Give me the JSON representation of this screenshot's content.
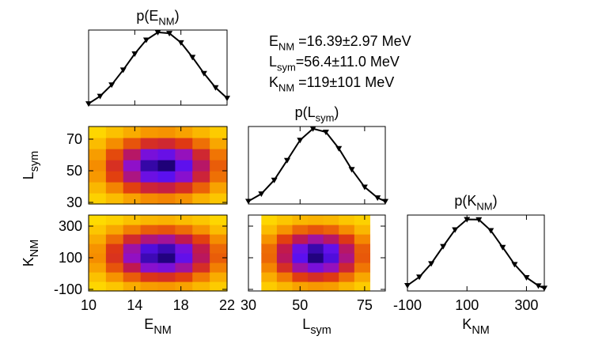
{
  "chart_data": [
    {
      "type": "line",
      "title": {
        "main": "p(E",
        "sub": "NM",
        "tail": ")"
      },
      "x": [
        10,
        11,
        12,
        13,
        14,
        15,
        16,
        17,
        18,
        19,
        20,
        21,
        22
      ],
      "values": [
        0.099,
        0.193,
        0.335,
        0.521,
        0.723,
        0.896,
        0.991,
        0.979,
        0.863,
        0.68,
        0.478,
        0.3,
        0.168
      ],
      "color": "#000000",
      "xlim": [
        10,
        22
      ],
      "xticks": [
        10,
        14,
        18,
        22
      ],
      "show_xtick_labels": false,
      "ylim": [
        0.08,
        1.02
      ],
      "annotations": [
        {
          "main": "E",
          "sub": "NM",
          "tail": " =16.39±2.97 MeV"
        },
        {
          "main": "L",
          "sub": "sym",
          "tail": "=56.4±11.0 MeV"
        },
        {
          "main": "K",
          "sub": "NM",
          "tail": " =119±101 MeV"
        }
      ]
    },
    {
      "type": "heatmap",
      "ylabel": {
        "main": "L",
        "sub": "sym"
      },
      "x": [
        10.75,
        12.25,
        13.75,
        15.25,
        16.75,
        18.25,
        19.75,
        21.25
      ],
      "y": [
        32.5,
        39.5,
        46.5,
        53.5,
        60.5,
        67.5,
        74.5
      ],
      "z": [
        [
          0.03,
          0.07,
          0.12,
          0.16,
          0.18,
          0.15,
          0.09,
          0.05
        ],
        [
          0.08,
          0.18,
          0.32,
          0.44,
          0.47,
          0.38,
          0.25,
          0.12
        ],
        [
          0.14,
          0.32,
          0.57,
          0.78,
          0.83,
          0.69,
          0.44,
          0.22
        ],
        [
          0.16,
          0.38,
          0.67,
          0.93,
          0.99,
          0.82,
          0.53,
          0.26
        ],
        [
          0.13,
          0.3,
          0.53,
          0.74,
          0.79,
          0.65,
          0.42,
          0.21
        ],
        [
          0.07,
          0.16,
          0.28,
          0.39,
          0.42,
          0.34,
          0.22,
          0.11
        ],
        [
          0.02,
          0.06,
          0.1,
          0.14,
          0.15,
          0.12,
          0.08,
          0.04
        ]
      ],
      "xlim": [
        10,
        22
      ],
      "xticks": [
        10,
        14,
        18,
        22
      ],
      "show_xtick_labels": false,
      "ylim": [
        29,
        78
      ],
      "yticks": [
        30,
        50,
        70
      ],
      "show_ytick_labels": true,
      "zlim": [
        0,
        1
      ],
      "colormap": [
        "#ffe000",
        "#f58a00",
        "#e03a10",
        "#c01850",
        "#9010c8",
        "#5a10f0",
        "#1a0070"
      ]
    },
    {
      "type": "heatmap",
      "xlabel": {
        "main": "E",
        "sub": "NM"
      },
      "ylabel": {
        "main": "K",
        "sub": "NM"
      },
      "x": [
        10.75,
        12.25,
        13.75,
        15.25,
        16.75,
        18.25,
        19.75,
        21.25
      ],
      "y": [
        -80,
        -20,
        40,
        100,
        160,
        220,
        280,
        340
      ],
      "z": [
        [
          0.02,
          0.05,
          0.1,
          0.13,
          0.14,
          0.12,
          0.08,
          0.04
        ],
        [
          0.06,
          0.15,
          0.26,
          0.36,
          0.38,
          0.32,
          0.2,
          0.1
        ],
        [
          0.12,
          0.28,
          0.5,
          0.69,
          0.73,
          0.61,
          0.39,
          0.19
        ],
        [
          0.16,
          0.37,
          0.66,
          0.91,
          0.98,
          0.81,
          0.52,
          0.26
        ],
        [
          0.15,
          0.35,
          0.62,
          0.86,
          0.91,
          0.75,
          0.49,
          0.24
        ],
        [
          0.1,
          0.23,
          0.41,
          0.56,
          0.6,
          0.5,
          0.32,
          0.16
        ],
        [
          0.05,
          0.11,
          0.19,
          0.26,
          0.28,
          0.23,
          0.15,
          0.07
        ],
        [
          0.01,
          0.03,
          0.06,
          0.08,
          0.09,
          0.07,
          0.05,
          0.02
        ]
      ],
      "xlim": [
        10,
        22
      ],
      "xticks": [
        10,
        14,
        18,
        22
      ],
      "show_xtick_labels": true,
      "ylim": [
        -110,
        370
      ],
      "yticks": [
        -100,
        100,
        300
      ],
      "show_ytick_labels": true,
      "zlim": [
        0,
        1
      ],
      "colormap": [
        "#ffe000",
        "#f58a00",
        "#e03a10",
        "#c01850",
        "#9010c8",
        "#5a10f0",
        "#1a0070"
      ]
    },
    {
      "type": "line",
      "title": {
        "main": "p(L",
        "sub": "sym",
        "tail": ")"
      },
      "x": [
        30,
        35,
        40,
        45,
        50,
        55,
        60,
        65,
        70,
        75,
        80,
        83
      ],
      "values": [
        0.056,
        0.151,
        0.329,
        0.584,
        0.844,
        0.992,
        0.948,
        0.737,
        0.466,
        0.239,
        0.1,
        0.054
      ],
      "color": "#000000",
      "xlim": [
        30,
        83
      ],
      "xticks": [
        30,
        50,
        75
      ],
      "show_xtick_labels": false,
      "ylim": [
        0.02,
        1.02
      ]
    },
    {
      "type": "heatmap",
      "xlabel": {
        "main": "L",
        "sub": "sym"
      },
      "x": [
        38,
        44,
        50,
        56,
        62,
        68,
        74
      ],
      "y": [
        -80,
        -20,
        40,
        100,
        160,
        220,
        280,
        340
      ],
      "z": [
        [
          0.04,
          0.08,
          0.12,
          0.14,
          0.13,
          0.08,
          0.04
        ],
        [
          0.1,
          0.2,
          0.33,
          0.39,
          0.34,
          0.22,
          0.11
        ],
        [
          0.18,
          0.39,
          0.62,
          0.74,
          0.65,
          0.43,
          0.21
        ],
        [
          0.24,
          0.52,
          0.83,
          0.98,
          0.86,
          0.57,
          0.27
        ],
        [
          0.23,
          0.49,
          0.78,
          0.92,
          0.81,
          0.53,
          0.26
        ],
        [
          0.15,
          0.32,
          0.51,
          0.61,
          0.53,
          0.35,
          0.17
        ],
        [
          0.07,
          0.15,
          0.24,
          0.28,
          0.25,
          0.16,
          0.08
        ],
        [
          0.02,
          0.05,
          0.08,
          0.09,
          0.08,
          0.05,
          0.03
        ]
      ],
      "xlim": [
        30,
        83
      ],
      "xticks": [
        30,
        50,
        75
      ],
      "show_xtick_labels": true,
      "ylim": [
        -110,
        370
      ],
      "yticks": [
        -100,
        100,
        300
      ],
      "show_ytick_labels": false,
      "zlim": [
        0,
        1
      ],
      "colormap": [
        "#ffe000",
        "#f58a00",
        "#e03a10",
        "#c01850",
        "#9010c8",
        "#5a10f0",
        "#1a0070"
      ]
    },
    {
      "type": "line",
      "title": {
        "main": "p(K",
        "sub": "NM",
        "tail": ")"
      },
      "xlabel": {
        "main": "K",
        "sub": "NM"
      },
      "x": [
        -100,
        -60,
        -20,
        20,
        60,
        100,
        140,
        180,
        220,
        260,
        300,
        340,
        360
      ],
      "values": [
        0.095,
        0.208,
        0.388,
        0.619,
        0.843,
        0.982,
        0.979,
        0.833,
        0.607,
        0.377,
        0.201,
        0.091,
        0.058
      ],
      "color": "#000000",
      "xlim": [
        -100,
        360
      ],
      "xticks": [
        -100,
        100,
        300
      ],
      "show_xtick_labels": true,
      "ylim": [
        0.02,
        1.04
      ]
    }
  ]
}
